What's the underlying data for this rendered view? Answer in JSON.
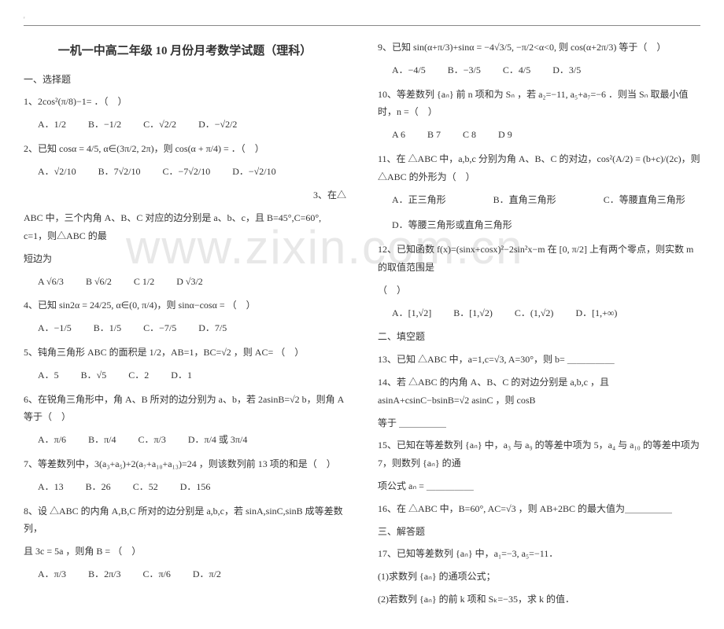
{
  "watermark": "www.zixin.com.cn",
  "title": "一机一中高二年级 10 月份月考数学试题（理科）",
  "sections": {
    "s1": "一、选择题",
    "s2": "二、填空题",
    "s3": "三、解答题"
  },
  "left": {
    "q1": "1、2cos²(π/8)−1= ．（　）",
    "q1a": "A．1/2",
    "q1b": "B．−1/2",
    "q1c": "C．√2/2",
    "q1d": "D．−√2/2",
    "q2": "2、已知 cosα = 4/5, α∈(3π/2, 2π)，则 cos(α + π/4) = ．（　）",
    "q2a": "A．√2/10",
    "q2b": "B．7√2/10",
    "q2c": "C．−7√2/10",
    "q2d": "D．−√2/10",
    "q3top": "3、在△",
    "q3": "ABC 中，三个内角 A、B、C 对应的边分别是 a、b、c，且 B=45°,C=60°, c=1，则△ABC 的最",
    "q3b2": "短边为",
    "q3a": "A  √6/3",
    "q3bopt": "B  √6/2",
    "q3c": "C  1/2",
    "q3d": "D  √3/2",
    "q4": "4、已知 sin2α = 24/25, α∈(0, π/4)，则 sinα−cosα = （　）",
    "q4a": "A．−1/5",
    "q4b": "B．1/5",
    "q4c": "C．−7/5",
    "q4d": "D．7/5",
    "q5": "5、钝角三角形 ABC 的面积是 1/2，AB=1，BC=√2 ，则 AC= （　）",
    "q5a": "A．5",
    "q5b": "B．√5",
    "q5c": "C．2",
    "q5d": "D．1",
    "q6": "6、在锐角三角形中，角 A、B 所对的边分别为 a、b，若 2asinB=√2 b，则角 A 等于（　）",
    "q6a": "A．π/6",
    "q6b": "B．π/4",
    "q6c": "C．π/3",
    "q6d": "D．π/4 或 3π/4",
    "q7": "7、等差数列中，3(a₃+a₅)+2(a₇+a₁₀+a₁₃)=24 ，则该数列前 13 项的和是（　）",
    "q7a": "A．13",
    "q7b": "B．26",
    "q7c": "C．52",
    "q7d": "D．156",
    "q8": "8、设 △ABC 的内角 A,B,C 所对的边分别是 a,b,c，若 sinA,sinC,sinB 成等差数列，",
    "q8l2": "且 3c = 5a ，则角 B = （　）",
    "q8a": "A．π/3",
    "q8b": "B．2π/3",
    "q8c": "C．π/6",
    "q8d": "D．π/2"
  },
  "right": {
    "q9": "9、已知 sin(α+π/3)+sinα = −4√3/5, −π/2<α<0, 则 cos(α+2π/3) 等于（　）",
    "q9a": "A．−4/5",
    "q9b": "B．−3/5",
    "q9c": "C．4/5",
    "q9d": "D．3/5",
    "q10": "10、等差数列 {aₙ} 前 n 项和为 Sₙ ，若 a₂=−11, a₅+a₇=−6 ．则当 Sₙ 取最小值时，n =（　）",
    "q10a": "A  6",
    "q10b": "B  7",
    "q10c": "C  8",
    "q10d": "D  9",
    "q11": "11、在 △ABC 中，a,b,c 分别为角 A、B、C 的对边，cos²(A/2) = (b+c)/(2c)，则 △ABC 的外形为（　）",
    "q11a": "A．正三角形",
    "q11b": "B．直角三角形",
    "q11c": "C．等腰直角三角形",
    "q11d": "D．等腰三角形或直角三角形",
    "q12": "12、已知函数 f(x)=(sinx+cosx)²−2sin²x−m 在 [0, π/2] 上有两个零点，则实数 m 的取值范围是",
    "q12p": "（　）",
    "q12a": "A．[1,√2]",
    "q12b": "B．[1,√2)",
    "q12c": "C．(1,√2)",
    "q12d": "D．[1,+∞)",
    "q13": "13、已知 △ABC 中，a=1,c=√3, A=30°，则 b= ＿＿＿＿＿",
    "q14": "14、若 △ABC 的内角 A、B、C 的对边分别是 a,b,c ，且 asinA+csinC−bsinB=√2 asinC ，则 cosB",
    "q14b": "等于 ＿＿＿＿＿",
    "q15": "15、已知在等差数列 {aₙ} 中，a₃ 与 a₉ 的等差中项为 5，a₄ 与 a₁₀ 的等差中项为 7，则数列 {aₙ} 的通",
    "q15b": "项公式 aₙ = ＿＿＿＿＿",
    "q16": "16、在 △ABC 中，B=60°, AC=√3 ，则 AB+2BC 的最大值为＿＿＿＿＿",
    "q17": "17、已知等差数列 {aₙ} 中，a₁=−3, a₅=−11．",
    "q17a": "(1)求数列 {aₙ} 的通项公式；",
    "q17b": "(2)若数列 {aₙ} 的前 k 项和 Sₖ=−35，求 k 的值．"
  }
}
